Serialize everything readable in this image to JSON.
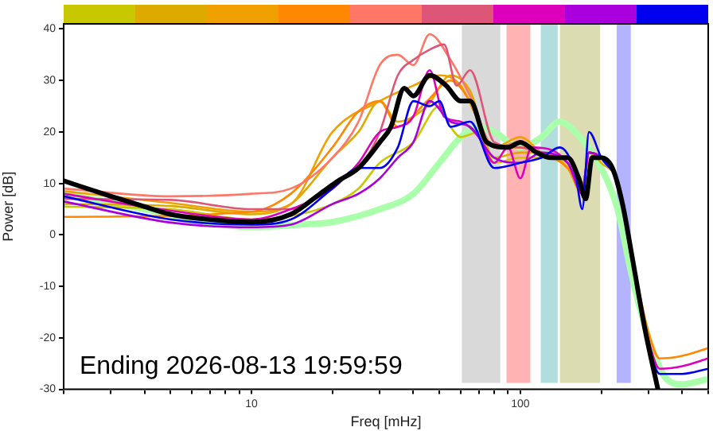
{
  "chart_data": {
    "type": "line",
    "xlabel": "Freq [mHz]",
    "ylabel": "Power [dB]",
    "log": "x",
    "xlim": [
      2,
      500
    ],
    "ylim": [
      -30,
      41
    ],
    "xticks": [
      {
        "value": 2,
        "label": null
      },
      {
        "value": 3,
        "label": null
      },
      {
        "value": 4,
        "label": null
      },
      {
        "value": 5,
        "label": null
      },
      {
        "value": 6,
        "label": null
      },
      {
        "value": 7,
        "label": null
      },
      {
        "value": 8,
        "label": null
      },
      {
        "value": 9,
        "label": null
      },
      10,
      {
        "value": 20,
        "label": null
      },
      {
        "value": 30,
        "label": null
      },
      {
        "value": 40,
        "label": null
      },
      {
        "value": 50,
        "label": null
      },
      {
        "value": 60,
        "label": null
      },
      {
        "value": 70,
        "label": null
      },
      {
        "value": 80,
        "label": null
      },
      {
        "value": 90,
        "label": null
      },
      100,
      {
        "value": 200,
        "label": null
      },
      {
        "value": 300,
        "label": null
      },
      {
        "value": 400,
        "label": null
      },
      {
        "value": 500,
        "label": null
      }
    ],
    "yticks": [
      -30,
      -20,
      -10,
      0,
      10,
      20,
      30,
      40
    ],
    "grid": false,
    "legend": false,
    "marker": "none",
    "bands": [
      {
        "axis": "x",
        "from": 60,
        "to": 85,
        "color": "#d9d9d9"
      },
      {
        "axis": "x",
        "from": 88,
        "to": 110,
        "color": "#ffb3b3"
      },
      {
        "axis": "x",
        "from": 118,
        "to": 139,
        "color": "#b3dcdc"
      },
      {
        "axis": "x",
        "from": 139,
        "to": 200,
        "color": "#dcdcb3"
      },
      {
        "axis": "x",
        "from": 226,
        "to": 260,
        "color": "#b3b3ff"
      }
    ],
    "annotations": [
      "Ending 2026-08-13 19:59:59"
    ],
    "series": [
      {
        "color": "#aaffaa",
        "x": [
          2,
          4,
          6,
          10,
          15,
          20,
          30,
          40,
          50,
          60,
          70,
          80,
          100,
          120,
          140,
          160,
          200,
          230,
          260,
          300,
          350,
          400,
          500
        ],
        "values": [
          8,
          5,
          3,
          1.5,
          2,
          2.5,
          5,
          8,
          14,
          19,
          21,
          20,
          17,
          19,
          22,
          20,
          13,
          5,
          -8,
          -20,
          -28,
          -29,
          -28
        ]
      },
      {
        "color": "#c8c800",
        "x": [
          2,
          5,
          10,
          15,
          20,
          25,
          30,
          40,
          50,
          55,
          60,
          70,
          80,
          100,
          120,
          150,
          170,
          180,
          200,
          230,
          260
        ],
        "values": [
          5.5,
          5,
          3,
          4,
          6,
          9,
          14,
          18,
          25,
          21,
          19,
          20,
          14,
          15,
          15,
          13,
          8,
          16,
          15,
          10,
          -5
        ]
      },
      {
        "color": "#ddaa00",
        "x": [
          2,
          5,
          10,
          14,
          20,
          25,
          30,
          35,
          45,
          55,
          65,
          80,
          100,
          120,
          150,
          170,
          180,
          200,
          230,
          260
        ],
        "values": [
          6,
          5.6,
          4,
          6,
          15,
          20,
          26,
          22,
          25,
          31,
          28,
          15,
          16,
          16,
          13,
          8,
          16,
          14,
          10,
          -5
        ]
      },
      {
        "color": "#f0a000",
        "x": [
          2,
          5,
          10,
          14,
          20,
          30,
          40,
          50,
          60,
          70,
          80,
          100,
          120,
          150,
          170,
          180,
          200,
          230,
          260
        ],
        "values": [
          8.5,
          6.2,
          4.5,
          6,
          20,
          26,
          29,
          31,
          29,
          22,
          17,
          19,
          16,
          14,
          9,
          16,
          15,
          10,
          -4
        ]
      },
      {
        "color": "#ff8800",
        "x": [
          2,
          10,
          14,
          20,
          25,
          30,
          35,
          45,
          55,
          65,
          80,
          100,
          120,
          150,
          170,
          180,
          200,
          230,
          260,
          300,
          330,
          400,
          500
        ],
        "values": [
          3.5,
          4.5,
          8,
          17,
          24,
          26,
          21,
          26,
          30,
          26,
          17,
          17,
          16,
          13,
          9,
          16,
          15,
          10,
          -4,
          -19,
          -24,
          -23.5,
          -22
        ]
      },
      {
        "color": "#ff7766",
        "x": [
          2,
          5,
          10,
          14,
          20,
          25,
          30,
          35,
          40,
          46,
          55,
          65,
          80,
          100,
          120,
          150,
          170,
          180,
          200
        ],
        "values": [
          9,
          7.5,
          8,
          9,
          15,
          22,
          33,
          35,
          33,
          39,
          34,
          27,
          17,
          18,
          16,
          14,
          9,
          16,
          15
        ]
      },
      {
        "color": "#dd5577",
        "x": [
          2,
          5,
          10,
          14,
          20,
          25,
          30,
          35,
          40,
          46,
          52,
          58,
          65,
          80,
          100,
          120,
          150,
          170,
          180,
          200,
          230,
          260
        ],
        "values": [
          7,
          6.8,
          5,
          5,
          10,
          13,
          20,
          31,
          34,
          36,
          37,
          29,
          32,
          18,
          17,
          16,
          14,
          9,
          16,
          15,
          10,
          -4
        ]
      },
      {
        "color": "#dd00bb",
        "x": [
          2,
          5,
          10,
          14,
          20,
          25,
          30,
          35,
          40,
          46,
          52,
          60,
          70,
          80,
          90,
          100,
          110,
          150,
          170,
          180,
          200,
          230,
          260,
          300,
          330,
          400,
          500
        ],
        "values": [
          8,
          4.7,
          3,
          5,
          9,
          14,
          20,
          21,
          23,
          32,
          23,
          22,
          19,
          14,
          17,
          11,
          17,
          14,
          8,
          16,
          15,
          10,
          -4,
          -20.5,
          -26,
          -25.5,
          -24
        ]
      },
      {
        "color": "#aa00dd",
        "x": [
          2,
          5,
          10,
          14,
          20,
          25,
          30,
          35,
          40,
          46,
          55,
          65,
          80,
          100,
          120,
          150,
          170,
          180,
          200,
          230,
          260
        ],
        "values": [
          6.5,
          2.4,
          1.5,
          2,
          6,
          8,
          11,
          15,
          18,
          26,
          22,
          21,
          15,
          14,
          16,
          14,
          9,
          16,
          15,
          10,
          -4
        ]
      },
      {
        "color": "#0000ee",
        "x": [
          2,
          5,
          10,
          14,
          20,
          25,
          30,
          35,
          40,
          46,
          50,
          55,
          65,
          80,
          100,
          120,
          140,
          160,
          170,
          180,
          200,
          230,
          260,
          300,
          330,
          400,
          500
        ],
        "values": [
          7.5,
          3,
          2,
          3,
          9,
          13,
          13,
          17,
          26,
          25,
          26,
          21,
          22,
          13,
          14,
          15,
          17,
          12,
          5,
          20,
          15,
          10,
          -5,
          -21.5,
          -27,
          -27,
          -26
        ]
      },
      {
        "color": "#000000",
        "x": [
          2,
          3,
          4,
          5,
          7,
          10,
          14,
          18,
          21,
          25,
          30,
          33,
          37,
          40,
          46,
          53,
          60,
          65,
          75,
          90,
          100,
          115,
          130,
          150,
          165,
          175,
          185,
          200,
          220,
          240,
          260,
          290,
          325
        ],
        "values": [
          10.5,
          7.5,
          5.5,
          4,
          3,
          2.5,
          4,
          8,
          10.5,
          13,
          18,
          21,
          28.5,
          27,
          31,
          29,
          26,
          26,
          18,
          17,
          18,
          16,
          15,
          15,
          11,
          7,
          15,
          15,
          13,
          6,
          -4,
          -18,
          -30
        ]
      }
    ]
  }
}
